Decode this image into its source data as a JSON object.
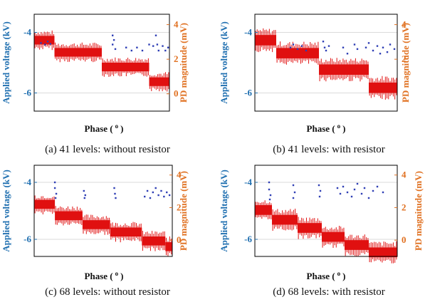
{
  "colors": {
    "voltage_axis": "#1f6fb0",
    "pd_axis": "#e07020",
    "voltage_series": "#2f3fb5",
    "pd_series": "#e01010",
    "grid": "#cfcfcf",
    "frame": "#000000"
  },
  "chart_data": [
    {
      "type": "scatter",
      "caption": "(a) 41 levels: without resistor",
      "xlabel": "Phase (",
      "xlabel_unit": "o",
      "xlabel_close": ")",
      "ylabel_left": "Applied voltage (kV)",
      "ylabel_right": "PD magnitude (mV)",
      "y_left_range": [
        -6.6,
        -3.4
      ],
      "y_left_ticks": [
        "-4",
        "-6"
      ],
      "y_right_range": [
        -1.0,
        4.6
      ],
      "y_right_ticks": [
        "0",
        "2",
        "4"
      ],
      "grid": true,
      "series": [
        {
          "axis": "left",
          "kind": "dots",
          "points": [
            [
              0.05,
              -4.35
            ],
            [
              0.08,
              -4.4
            ],
            [
              0.1,
              -4.3
            ],
            [
              0.12,
              -4.38
            ],
            [
              0.58,
              -4.1
            ],
            [
              0.58,
              -4.4
            ],
            [
              0.59,
              -4.25
            ],
            [
              0.6,
              -4.55
            ],
            [
              0.68,
              -4.5
            ],
            [
              0.72,
              -4.6
            ],
            [
              0.76,
              -4.5
            ],
            [
              0.8,
              -4.6
            ],
            [
              0.85,
              -4.4
            ],
            [
              0.88,
              -4.45
            ],
            [
              0.9,
              -4.1
            ],
            [
              0.91,
              -4.4
            ],
            [
              0.92,
              -4.6
            ],
            [
              0.95,
              -4.45
            ],
            [
              0.97,
              -4.6
            ],
            [
              0.99,
              -4.5
            ]
          ]
        },
        {
          "axis": "right",
          "kind": "band",
          "band_height": 0.5,
          "steps": [
            [
              0.0,
              0.15,
              3.1
            ],
            [
              0.15,
              0.5,
              2.4
            ],
            [
              0.5,
              0.85,
              1.55
            ],
            [
              0.85,
              1.0,
              0.7
            ]
          ]
        }
      ]
    },
    {
      "type": "scatter",
      "caption": "(b) 41 levels: with resistor",
      "xlabel": "Phase (",
      "xlabel_unit": "o",
      "xlabel_close": ")",
      "ylabel_left": "Applied voltage (kV)",
      "ylabel_right": "PD magnitude (mV)",
      "y_left_range": [
        -6.6,
        -3.4
      ],
      "y_left_ticks": [
        "-4",
        "-6"
      ],
      "y_right_range": [
        -1.0,
        4.6
      ],
      "y_right_ticks": [
        "2",
        "4"
      ],
      "grid": true,
      "series": [
        {
          "axis": "left",
          "kind": "dots",
          "points": [
            [
              0.25,
              -4.5
            ],
            [
              0.27,
              -4.4
            ],
            [
              0.3,
              -4.55
            ],
            [
              0.33,
              -4.45
            ],
            [
              0.36,
              -4.6
            ],
            [
              0.48,
              -4.3
            ],
            [
              0.49,
              -4.5
            ],
            [
              0.5,
              -4.6
            ],
            [
              0.52,
              -4.45
            ],
            [
              0.62,
              -4.5
            ],
            [
              0.65,
              -4.7
            ],
            [
              0.7,
              -4.4
            ],
            [
              0.72,
              -4.55
            ],
            [
              0.78,
              -4.5
            ],
            [
              0.8,
              -4.35
            ],
            [
              0.83,
              -4.6
            ],
            [
              0.86,
              -4.45
            ],
            [
              0.88,
              -4.7
            ],
            [
              0.9,
              -4.5
            ],
            [
              0.93,
              -4.65
            ],
            [
              0.95,
              -4.4
            ],
            [
              0.98,
              -4.55
            ]
          ]
        },
        {
          "axis": "right",
          "kind": "band",
          "band_height": 0.6,
          "steps": [
            [
              0.0,
              0.15,
              3.1
            ],
            [
              0.15,
              0.45,
              2.35
            ],
            [
              0.45,
              0.8,
              1.4
            ],
            [
              0.8,
              1.0,
              0.35
            ]
          ]
        }
      ]
    },
    {
      "type": "scatter",
      "caption": "(c) 68 levels: without resistor",
      "xlabel": "Phase (",
      "xlabel_unit": "o",
      "xlabel_close": ")",
      "ylabel_left": "Applied voltage (kV)",
      "ylabel_right": "PD magnitude (mV)",
      "y_left_range": [
        -6.6,
        -3.4
      ],
      "y_left_ticks": [
        "-4",
        "-6"
      ],
      "y_right_range": [
        -1.0,
        4.6
      ],
      "y_right_ticks": [
        "0",
        "2",
        "4"
      ],
      "grid": true,
      "series": [
        {
          "axis": "left",
          "kind": "dots",
          "points": [
            [
              0.15,
              -4.0
            ],
            [
              0.15,
              -4.2
            ],
            [
              0.16,
              -4.4
            ],
            [
              0.155,
              -4.55
            ],
            [
              0.36,
              -4.3
            ],
            [
              0.37,
              -4.45
            ],
            [
              0.365,
              -4.55
            ],
            [
              0.58,
              -4.2
            ],
            [
              0.585,
              -4.4
            ],
            [
              0.59,
              -4.55
            ],
            [
              0.8,
              -4.5
            ],
            [
              0.82,
              -4.3
            ],
            [
              0.84,
              -4.55
            ],
            [
              0.86,
              -4.35
            ],
            [
              0.88,
              -4.2
            ],
            [
              0.9,
              -4.45
            ],
            [
              0.92,
              -4.3
            ],
            [
              0.94,
              -4.5
            ],
            [
              0.96,
              -4.35
            ],
            [
              0.98,
              -4.45
            ]
          ]
        },
        {
          "axis": "right",
          "kind": "band",
          "band_height": 0.55,
          "steps": [
            [
              0.0,
              0.15,
              2.2
            ],
            [
              0.15,
              0.35,
              1.5
            ],
            [
              0.35,
              0.55,
              0.95
            ],
            [
              0.55,
              0.78,
              0.5
            ],
            [
              0.78,
              0.95,
              -0.05
            ],
            [
              0.95,
              1.0,
              -0.4
            ]
          ]
        }
      ]
    },
    {
      "type": "scatter",
      "caption": "(d) 68 levels: with resistor",
      "xlabel": "Phase (",
      "xlabel_unit": "o",
      "xlabel_close": ")",
      "ylabel_left": "Applied voltage (kV)",
      "ylabel_right": "PD magnitude (mV)",
      "y_left_range": [
        -6.6,
        -3.4
      ],
      "y_left_ticks": [
        "-4",
        "-6"
      ],
      "y_right_range": [
        -1.0,
        4.6
      ],
      "y_right_ticks": [
        "0",
        "2",
        "4"
      ],
      "grid": true,
      "series": [
        {
          "axis": "left",
          "kind": "dots",
          "points": [
            [
              0.1,
              -4.0
            ],
            [
              0.1,
              -4.25
            ],
            [
              0.11,
              -4.45
            ],
            [
              0.105,
              -4.6
            ],
            [
              0.27,
              -4.1
            ],
            [
              0.28,
              -4.35
            ],
            [
              0.27,
              -4.55
            ],
            [
              0.45,
              -4.1
            ],
            [
              0.46,
              -4.3
            ],
            [
              0.455,
              -4.5
            ],
            [
              0.58,
              -4.2
            ],
            [
              0.6,
              -4.4
            ],
            [
              0.62,
              -4.15
            ],
            [
              0.65,
              -4.35
            ],
            [
              0.68,
              -4.5
            ],
            [
              0.7,
              -4.25
            ],
            [
              0.72,
              -4.05
            ],
            [
              0.75,
              -4.4
            ],
            [
              0.77,
              -4.2
            ],
            [
              0.8,
              -4.55
            ],
            [
              0.83,
              -4.3
            ],
            [
              0.86,
              -4.15
            ],
            [
              0.9,
              -4.35
            ]
          ]
        },
        {
          "axis": "right",
          "kind": "band",
          "band_height": 0.6,
          "steps": [
            [
              0.0,
              0.12,
              1.85
            ],
            [
              0.12,
              0.3,
              1.25
            ],
            [
              0.3,
              0.47,
              0.75
            ],
            [
              0.47,
              0.63,
              0.2
            ],
            [
              0.63,
              0.8,
              -0.3
            ],
            [
              0.8,
              1.0,
              -0.75
            ]
          ]
        }
      ]
    }
  ]
}
